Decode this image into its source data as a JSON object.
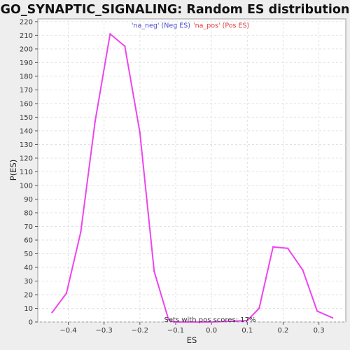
{
  "chart_data": {
    "type": "line",
    "title": "GO_SYNAPTIC_SIGNALING: Random ES distribution",
    "xlabel": "ES",
    "ylabel": "P(ES)",
    "xlim": [
      -0.485,
      0.375
    ],
    "ylim": [
      0,
      222
    ],
    "x_ticks": [
      -0.4,
      -0.3,
      -0.2,
      -0.1,
      0.0,
      0.1,
      0.2,
      0.3
    ],
    "x_tick_labels": [
      "−0.4",
      "−0.3",
      "−0.2",
      "−0.1",
      "0.0",
      "0.1",
      "0.2",
      "0.3"
    ],
    "y_ticks": [
      0,
      10,
      20,
      30,
      40,
      50,
      60,
      70,
      80,
      90,
      100,
      110,
      120,
      130,
      140,
      150,
      160,
      170,
      180,
      190,
      200,
      210,
      220
    ],
    "grid": true,
    "legend": {
      "position": "top-center",
      "items": [
        {
          "label": "'na_neg' (Neg ES)",
          "color": "#4b4bd6"
        },
        {
          "label": "'na_pos' (Pos ES)",
          "color": "#e04040"
        }
      ]
    },
    "series": [
      {
        "color": "#ee44ee",
        "x": [
          -0.445,
          -0.405,
          -0.365,
          -0.325,
          -0.283,
          -0.242,
          -0.2,
          -0.16,
          -0.12,
          -0.105,
          0.0,
          0.1,
          0.133,
          0.172,
          0.213,
          0.255,
          0.295,
          0.338
        ],
        "values": [
          7,
          21,
          66,
          147,
          211,
          202,
          139,
          37,
          2,
          0,
          0,
          1,
          10,
          55,
          54,
          38,
          8,
          3
        ]
      }
    ],
    "annotation": "Sets with pos scores: 17%"
  }
}
